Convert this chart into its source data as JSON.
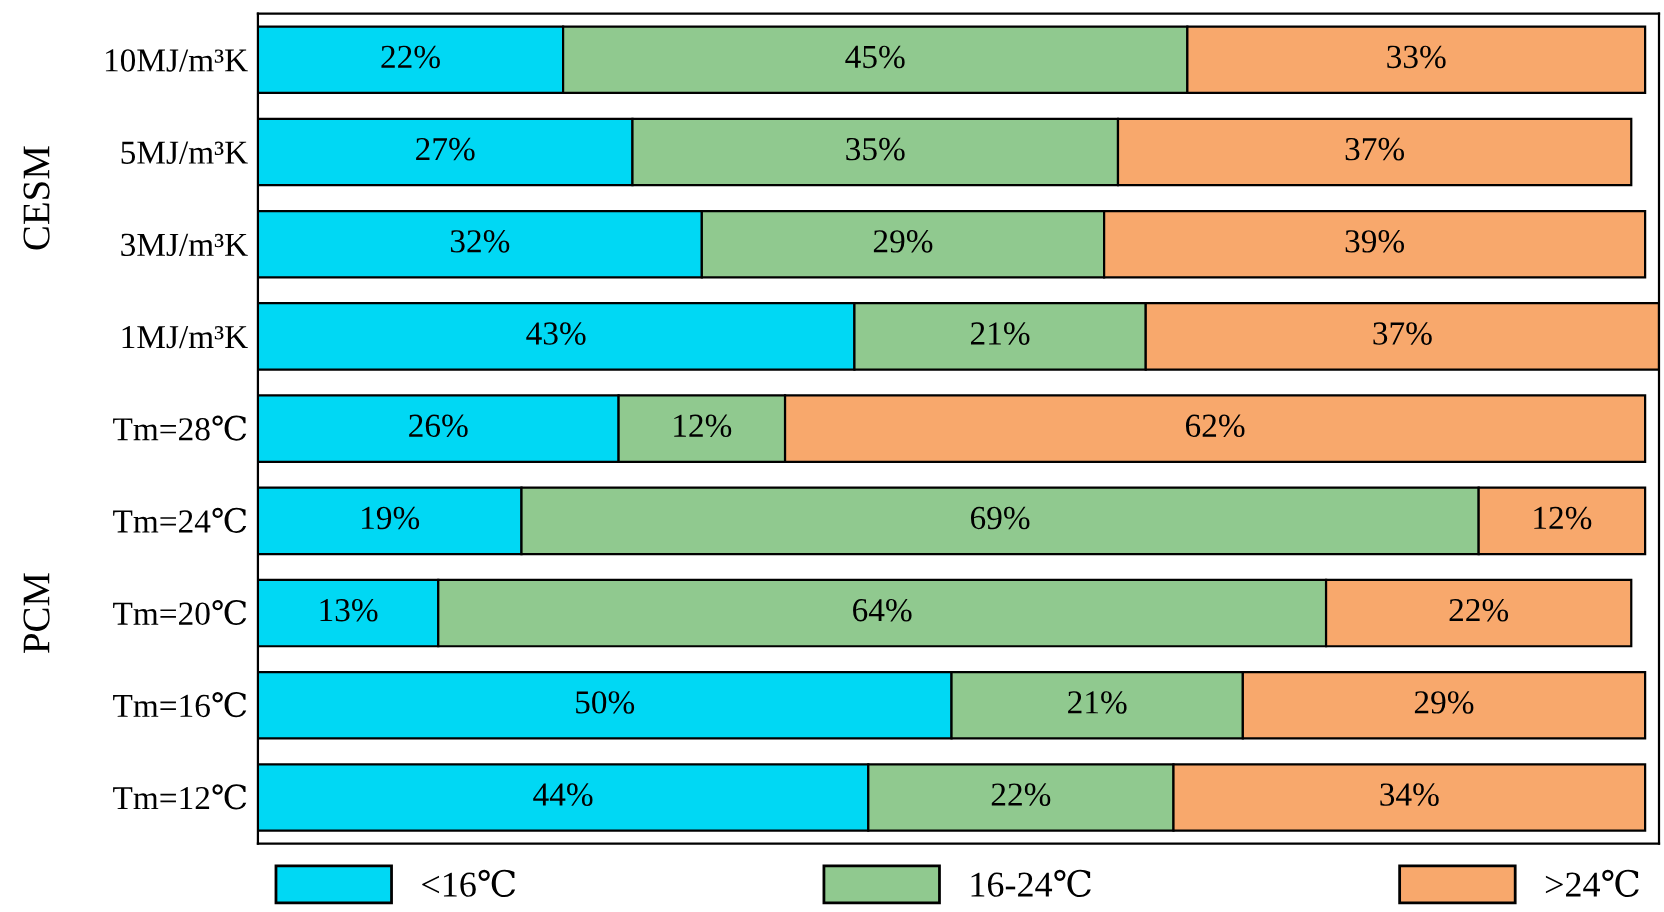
{
  "chart_data": {
    "type": "bar",
    "orientation": "horizontal",
    "stacked": true,
    "tick_labels": "y",
    "grid": false,
    "legend": "bottom",
    "categories": [
      "10MJ/m³K",
      "5MJ/m³K",
      "3MJ/m³K",
      "1MJ/m³K",
      "Tm=28℃",
      "Tm=24℃",
      "Tm=20℃",
      "Tm=16℃",
      "Tm=12℃"
    ],
    "series": [
      {
        "name": "<16℃",
        "color": "#00d8f4",
        "values": [
          22,
          27,
          32,
          43,
          26,
          19,
          13,
          50,
          44
        ],
        "value_labels": [
          "22%",
          "27%",
          "32%",
          "43%",
          "26%",
          "19%",
          "13%",
          "50%",
          "44%"
        ]
      },
      {
        "name": "16-24℃",
        "color": "#90c98f",
        "values": [
          45,
          35,
          29,
          21,
          12,
          69,
          64,
          21,
          22
        ],
        "value_labels": [
          "45%",
          "35%",
          "29%",
          "21%",
          "12%",
          "69%",
          "64%",
          "21%",
          "22%"
        ]
      },
      {
        "name": ">24℃",
        "color": "#f8a86c",
        "values": [
          33,
          37,
          39,
          37,
          62,
          12,
          22,
          29,
          34
        ],
        "value_labels": [
          "33%",
          "37%",
          "39%",
          "37%",
          "62%",
          "12%",
          "22%",
          "29%",
          "34%"
        ]
      }
    ],
    "annotations": [
      "CESM",
      "PCM"
    ]
  }
}
